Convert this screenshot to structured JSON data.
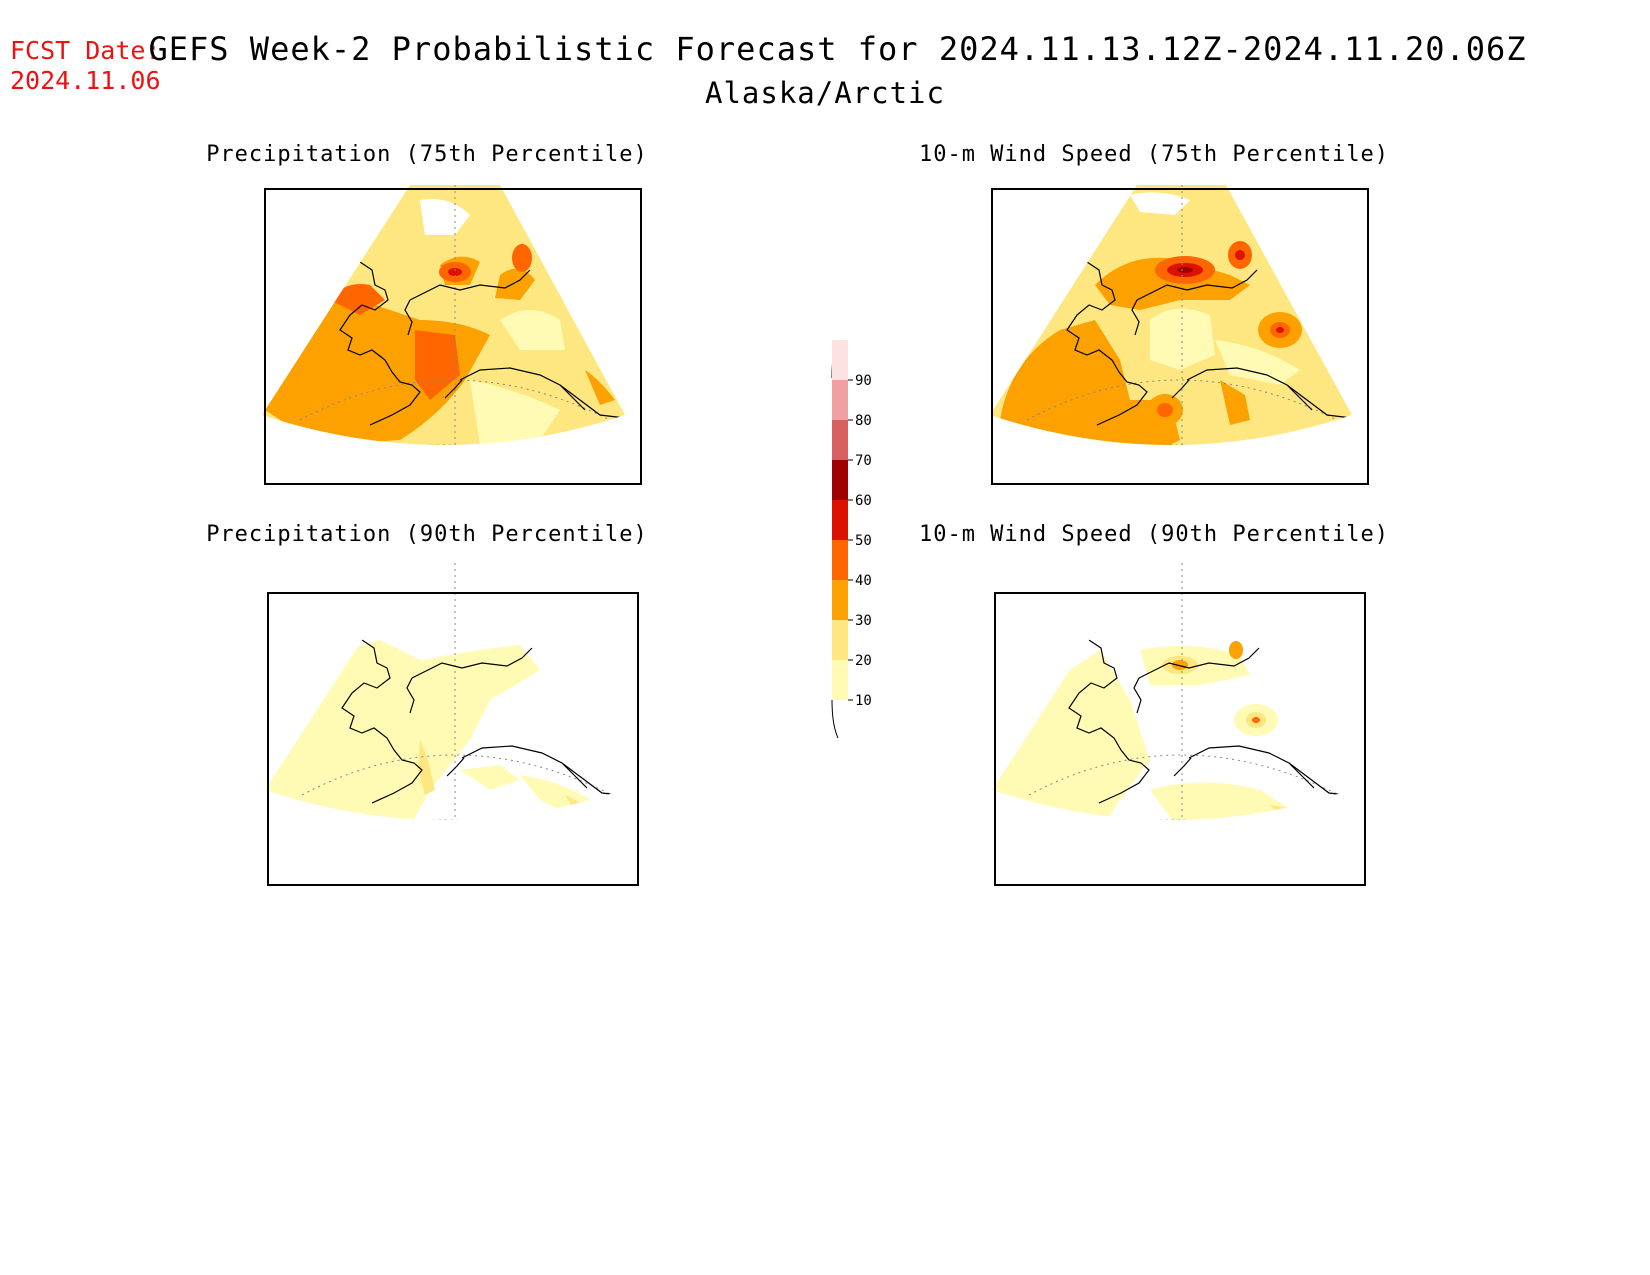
{
  "header": {
    "fcst_label": "FCST Date:",
    "fcst_date": "2024.11.06",
    "title": "GEFS Week-2 Probabilistic Forecast for 2024.11.13.12Z-2024.11.20.06Z",
    "region": "Alaska/Arctic"
  },
  "panels": [
    {
      "id": "precip75",
      "title": "Precipitation (75th Percentile)"
    },
    {
      "id": "wind75",
      "title": "10-m Wind Speed (75th Percentile)"
    },
    {
      "id": "precip90",
      "title": "Precipitation (90th Percentile)"
    },
    {
      "id": "wind90",
      "title": "10-m Wind Speed (90th Percentile)"
    }
  ],
  "colorbar": {
    "unit_hint": "probability (%)",
    "levels": [
      10,
      20,
      30,
      40,
      50,
      60,
      70,
      80,
      90
    ],
    "colors": [
      "#fffab4",
      "#fee680",
      "#fda100",
      "#ff6600",
      "#dd1100",
      "#a00000",
      "#d86060",
      "#f0a0a0",
      "#fde2e2"
    ]
  }
}
